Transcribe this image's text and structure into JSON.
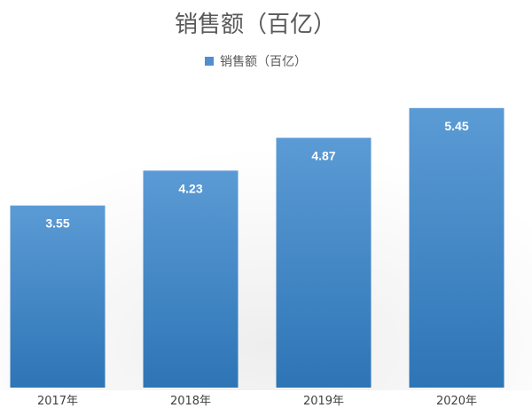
{
  "chart_data": {
    "type": "bar",
    "title": "销售额（百亿）",
    "categories": [
      "2017年",
      "2018年",
      "2019年",
      "2020年"
    ],
    "series": [
      {
        "name": "销售额（百亿）",
        "values": [
          3.55,
          4.23,
          4.87,
          5.45
        ]
      }
    ],
    "xlabel": "",
    "ylabel": "",
    "ylim": [
      0,
      6
    ],
    "grid": false,
    "legend": "top",
    "data_labels": [
      "3.55",
      "4.23",
      "4.87",
      "5.45"
    ],
    "colors": {
      "bar_top": "#5b9bd5",
      "bar_bottom": "#2e75b6",
      "title": "#595959",
      "legend_swatch": "#4f8fcf"
    }
  }
}
